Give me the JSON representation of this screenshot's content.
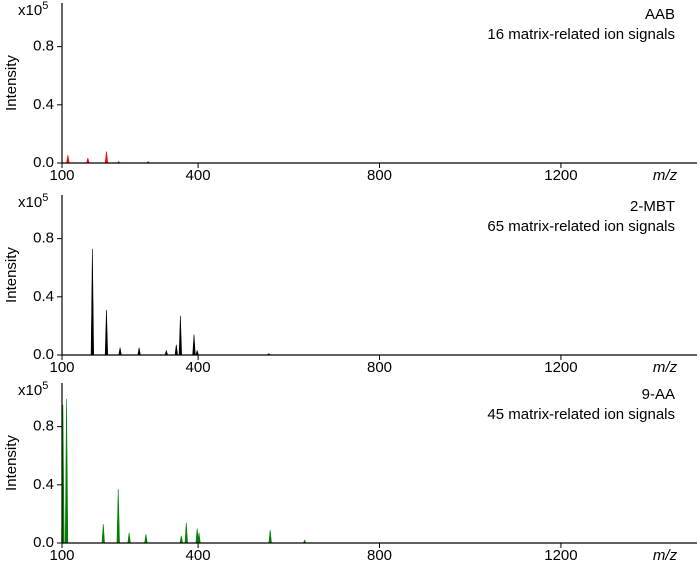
{
  "chart_data": [
    {
      "type": "stem",
      "title": "AAB",
      "subtitle": "16 matrix-related ion signals",
      "xlabel": "m/z",
      "ylabel": "Intensity",
      "multiplier": "x10",
      "multiplier_exp": "5",
      "color": "#ff0000",
      "x": [
        113,
        157,
        198,
        225,
        290
      ],
      "values": [
        0.055,
        0.035,
        0.08,
        0.01,
        0.01
      ],
      "xlim": [
        100,
        1500
      ],
      "ylim": [
        0,
        1.1
      ],
      "xticks": [
        100,
        400,
        800,
        1200
      ],
      "yticks": [
        {
          "value": 0,
          "label": "0.0"
        },
        0.4,
        0.8
      ]
    },
    {
      "type": "stem",
      "title": "2-MBT",
      "subtitle": "65 matrix-related ion signals",
      "xlabel": "m/z",
      "ylabel": "Intensity",
      "multiplier": "x10",
      "multiplier_exp": "5",
      "color": "#000000",
      "x": [
        167,
        198,
        228,
        270,
        330,
        352,
        361,
        391,
        398,
        556
      ],
      "values": [
        0.73,
        0.31,
        0.05,
        0.05,
        0.03,
        0.07,
        0.27,
        0.14,
        0.03,
        0.01
      ],
      "xlim": [
        100,
        1500
      ],
      "ylim": [
        0,
        1.1
      ],
      "xticks": [
        100,
        400,
        800,
        1200
      ],
      "yticks": [
        {
          "value": 0,
          "label": "0.0"
        },
        0.4,
        0.8
      ]
    },
    {
      "type": "stem",
      "title": "9-AA",
      "subtitle": "45 matrix-related ion signals",
      "xlabel": "m/z",
      "ylabel": "Intensity",
      "multiplier": "x10",
      "multiplier_exp": "5",
      "color": "#008000",
      "x": [
        102,
        110,
        191,
        224,
        248,
        285,
        363,
        374,
        398,
        402,
        559,
        635
      ],
      "values": [
        0.95,
        0.99,
        0.13,
        0.37,
        0.07,
        0.06,
        0.05,
        0.14,
        0.1,
        0.07,
        0.09,
        0.02
      ],
      "xlim": [
        100,
        1500
      ],
      "ylim": [
        0,
        1.1
      ],
      "xticks": [
        100,
        400,
        800,
        1200
      ],
      "yticks": [
        {
          "value": 0,
          "label": "0.0"
        },
        0.4,
        0.8
      ]
    }
  ]
}
